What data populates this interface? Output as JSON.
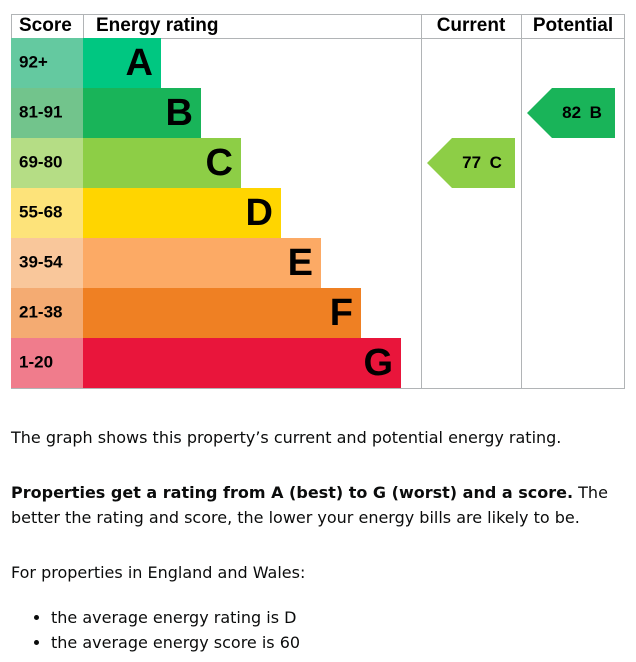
{
  "header": {
    "score": "Score",
    "rating": "Energy rating",
    "current": "Current",
    "potential": "Potential"
  },
  "bands": [
    {
      "score": "92+",
      "letter": "A",
      "color": "#00c781",
      "score_color": "#64c9a0"
    },
    {
      "score": "81-91",
      "letter": "B",
      "color": "#19b459",
      "score_color": "#72c48c"
    },
    {
      "score": "69-80",
      "letter": "C",
      "color": "#8dce46",
      "score_color": "#b5dd85"
    },
    {
      "score": "55-68",
      "letter": "D",
      "color": "#ffd500",
      "score_color": "#fde37a"
    },
    {
      "score": "39-54",
      "letter": "E",
      "color": "#fcaa65",
      "score_color": "#f9c79b"
    },
    {
      "score": "21-38",
      "letter": "F",
      "color": "#ef8023",
      "score_color": "#f4ab72"
    },
    {
      "score": "1-20",
      "letter": "G",
      "color": "#e9153b",
      "score_color": "#f07c8c"
    }
  ],
  "current": {
    "value": 77,
    "letter": "C"
  },
  "potential": {
    "value": 82,
    "letter": "B"
  },
  "text": {
    "p1": "The graph shows this property’s current and potential energy rating.",
    "p2_bold": "Properties get a rating from A (best) to G (worst) and a score.",
    "p2_rest": "The better the rating and score, the lower your energy bills are likely to be.",
    "p3": "For properties in England and Wales:",
    "bullets": [
      "the average energy rating is D",
      "the average energy score is 60"
    ]
  }
}
